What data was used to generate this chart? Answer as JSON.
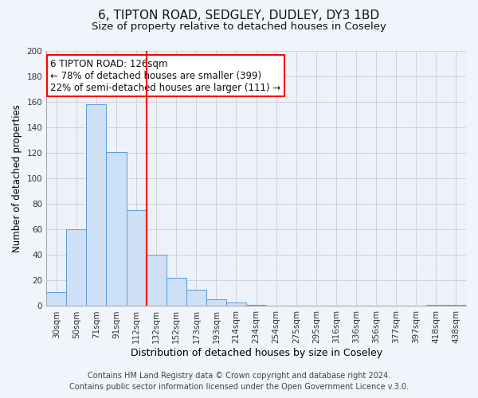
{
  "title": "6, TIPTON ROAD, SEDGLEY, DUDLEY, DY3 1BD",
  "subtitle": "Size of property relative to detached houses in Coseley",
  "xlabel": "Distribution of detached houses by size in Coseley",
  "ylabel": "Number of detached properties",
  "bar_color": "#cde0f5",
  "bar_edge_color": "#5b9bd5",
  "categories": [
    "30sqm",
    "50sqm",
    "71sqm",
    "91sqm",
    "112sqm",
    "132sqm",
    "152sqm",
    "173sqm",
    "193sqm",
    "214sqm",
    "234sqm",
    "254sqm",
    "275sqm",
    "295sqm",
    "316sqm",
    "336sqm",
    "356sqm",
    "377sqm",
    "397sqm",
    "418sqm",
    "438sqm"
  ],
  "values": [
    11,
    60,
    158,
    121,
    75,
    40,
    22,
    13,
    5,
    3,
    1,
    0,
    0,
    0,
    0,
    0,
    0,
    0,
    0,
    1,
    1
  ],
  "vline_color": "red",
  "vline_position": 4.5,
  "ylim": [
    0,
    200
  ],
  "yticks": [
    0,
    20,
    40,
    60,
    80,
    100,
    120,
    140,
    160,
    180,
    200
  ],
  "annotation_lines": [
    "6 TIPTON ROAD: 126sqm",
    "← 78% of detached houses are smaller (399)",
    "22% of semi-detached houses are larger (111) →"
  ],
  "footer_lines": [
    "Contains HM Land Registry data © Crown copyright and database right 2024.",
    "Contains public sector information licensed under the Open Government Licence v.3.0."
  ],
  "background_color": "#f0f4fb",
  "plot_bg_color": "#edf2fa",
  "grid_color": "#cccccc",
  "title_fontsize": 11,
  "subtitle_fontsize": 9.5,
  "xlabel_fontsize": 9,
  "ylabel_fontsize": 8.5,
  "tick_fontsize": 7.5,
  "annotation_fontsize": 8.5,
  "footer_fontsize": 7
}
